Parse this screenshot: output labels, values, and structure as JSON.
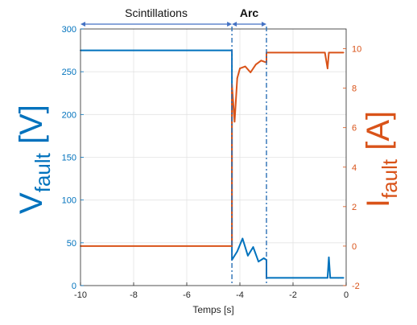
{
  "chart_data": {
    "type": "line",
    "xlabel": "Temps [s]",
    "ylabel_left": {
      "main": "V",
      "sub": "fault",
      "unit": " [V]"
    },
    "ylabel_right": {
      "main": "I",
      "sub": "fault",
      "unit": " [A]"
    },
    "xlim": [
      -10,
      0
    ],
    "ylim_left": [
      0,
      300
    ],
    "ylim_right": [
      -2,
      11
    ],
    "x_ticks": [
      -10,
      -8,
      -6,
      -4,
      -2,
      0
    ],
    "y_left_ticks": [
      0,
      50,
      100,
      150,
      200,
      250,
      300
    ],
    "y_right_ticks": [
      -2,
      0,
      2,
      4,
      6,
      8,
      10
    ],
    "grid": true,
    "colors": {
      "voltage": "#0072BD",
      "current": "#D95319"
    },
    "annotations": [
      {
        "label": "Scintillations",
        "from": -10,
        "to": -4.3,
        "bold": false
      },
      {
        "label": "Arc",
        "from": -4.3,
        "to": -3.0,
        "bold": true
      }
    ],
    "markers_x": [
      -4.3,
      -3.0
    ],
    "series": [
      {
        "axis": "left",
        "x": [
          -10,
          -4.3,
          -4.3,
          -4.1,
          -3.9,
          -3.7,
          -3.5,
          -3.3,
          -3.1,
          -3.0,
          -3.0,
          -0.7,
          -0.65,
          -0.6,
          -0.3,
          -0.1
        ],
        "y": [
          275,
          275,
          30,
          40,
          55,
          35,
          45,
          28,
          32,
          30,
          9,
          9,
          33,
          9,
          9,
          9
        ]
      },
      {
        "axis": "right",
        "x": [
          -10,
          -4.3,
          -4.3,
          -4.2,
          -4.1,
          -4.0,
          -3.8,
          -3.6,
          -3.4,
          -3.2,
          -3.0,
          -3.0,
          -0.8,
          -0.7,
          -0.65,
          -0.1
        ],
        "y": [
          0,
          0,
          8.2,
          6.3,
          8.5,
          9.0,
          9.1,
          8.8,
          9.2,
          9.4,
          9.3,
          9.8,
          9.8,
          9.0,
          9.8,
          9.8
        ]
      }
    ]
  }
}
